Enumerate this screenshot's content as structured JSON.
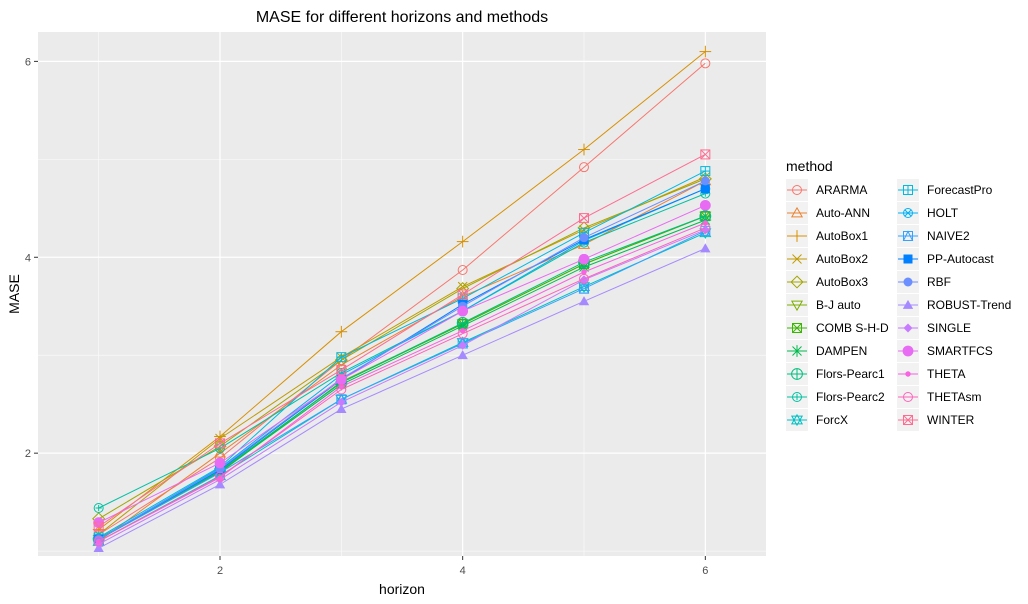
{
  "chart_data": {
    "type": "line",
    "title": "MASE for different horizons and methods",
    "xlabel": "horizon",
    "ylabel": "MASE",
    "x": [
      1,
      2,
      3,
      4,
      5,
      6
    ],
    "xlim": [
      0.5,
      6.5
    ],
    "ylim": [
      0.95,
      6.3
    ],
    "xticks": [
      2,
      4,
      6
    ],
    "yticks": [
      2,
      4,
      6
    ],
    "grid": true,
    "legend": {
      "title": "method",
      "position": "right",
      "columns": 2
    },
    "series": [
      {
        "name": "ARARMA",
        "color": "#F8766D",
        "marker": "circle-open",
        "values": [
          1.17,
          1.95,
          2.95,
          3.87,
          4.92,
          5.98
        ]
      },
      {
        "name": "Auto-ANN",
        "color": "#EA8331",
        "marker": "triangle-open",
        "values": [
          1.1,
          2.0,
          2.9,
          3.6,
          4.13,
          4.78
        ]
      },
      {
        "name": "AutoBox1",
        "color": "#D89000",
        "marker": "plus",
        "values": [
          1.22,
          2.17,
          3.24,
          4.16,
          5.1,
          6.1
        ]
      },
      {
        "name": "AutoBox2",
        "color": "#C09B00",
        "marker": "cross",
        "values": [
          1.17,
          2.15,
          2.98,
          3.7,
          4.28,
          4.82
        ]
      },
      {
        "name": "AutoBox3",
        "color": "#A3A500",
        "marker": "diamond-open",
        "values": [
          1.33,
          2.07,
          2.95,
          3.68,
          4.3,
          4.8
        ]
      },
      {
        "name": "B-J auto",
        "color": "#7CAE00",
        "marker": "triangle-down-open",
        "values": [
          1.12,
          1.8,
          2.73,
          3.32,
          3.93,
          4.42
        ]
      },
      {
        "name": "COMB S-H-D",
        "color": "#39B600",
        "marker": "square-cross",
        "values": [
          1.12,
          1.82,
          2.72,
          3.32,
          3.93,
          4.42
        ]
      },
      {
        "name": "DAMPEN",
        "color": "#00BB4E",
        "marker": "asterisk",
        "values": [
          1.13,
          1.81,
          2.7,
          3.3,
          3.9,
          4.38
        ]
      },
      {
        "name": "Flors-Pearc1",
        "color": "#00BF7D",
        "marker": "circle-plus",
        "values": [
          1.12,
          1.82,
          2.72,
          3.33,
          3.95,
          4.42
        ]
      },
      {
        "name": "Flors-Pearc2",
        "color": "#00C1A3",
        "marker": "circle-cross",
        "values": [
          1.44,
          2.05,
          2.82,
          3.45,
          4.15,
          4.65
        ]
      },
      {
        "name": "ForcX",
        "color": "#00BFC4",
        "marker": "star-of-david",
        "values": [
          1.1,
          1.77,
          2.55,
          3.13,
          3.7,
          4.25
        ]
      },
      {
        "name": "ForecastPro",
        "color": "#00BAE0",
        "marker": "square-plus",
        "values": [
          1.14,
          1.86,
          2.98,
          3.58,
          4.25,
          4.88
        ]
      },
      {
        "name": "HOLT",
        "color": "#00B0F6",
        "marker": "circle-x",
        "values": [
          1.12,
          1.85,
          2.8,
          3.45,
          4.17,
          4.7
        ]
      },
      {
        "name": "NAIVE2",
        "color": "#35A2FF",
        "marker": "square-triangle",
        "values": [
          1.12,
          1.8,
          2.55,
          3.12,
          3.68,
          4.27
        ]
      },
      {
        "name": "PP-Autocast",
        "color": "#0080FF",
        "marker": "square-filled",
        "values": [
          1.12,
          1.83,
          2.75,
          3.52,
          4.18,
          4.7
        ]
      },
      {
        "name": "RBF",
        "color": "#6C8FFF",
        "marker": "circle-filled",
        "values": [
          1.12,
          1.84,
          2.76,
          3.5,
          4.2,
          4.78
        ]
      },
      {
        "name": "ROBUST-Trend",
        "color": "#A58AFF",
        "marker": "triangle-filled",
        "values": [
          1.03,
          1.68,
          2.45,
          3.0,
          3.55,
          4.09
        ]
      },
      {
        "name": "SINGLE",
        "color": "#C77CFF",
        "marker": "diamond-filled",
        "values": [
          1.07,
          1.73,
          2.52,
          3.1,
          3.77,
          4.28
        ]
      },
      {
        "name": "SMARTFCS",
        "color": "#E76BF3",
        "marker": "circle-filled-large",
        "values": [
          1.29,
          1.9,
          2.75,
          3.45,
          3.98,
          4.53
        ]
      },
      {
        "name": "THETA",
        "color": "#F763E0",
        "marker": "dot",
        "values": [
          1.1,
          1.75,
          2.68,
          3.25,
          3.85,
          4.35
        ]
      },
      {
        "name": "THETAsm",
        "color": "#FF62BC",
        "marker": "circle-open",
        "values": [
          1.1,
          1.76,
          2.65,
          3.22,
          3.78,
          4.3
        ]
      },
      {
        "name": "WINTER",
        "color": "#FF6C91",
        "marker": "square-cross",
        "values": [
          1.25,
          2.1,
          2.85,
          3.62,
          4.4,
          5.05
        ]
      }
    ]
  }
}
